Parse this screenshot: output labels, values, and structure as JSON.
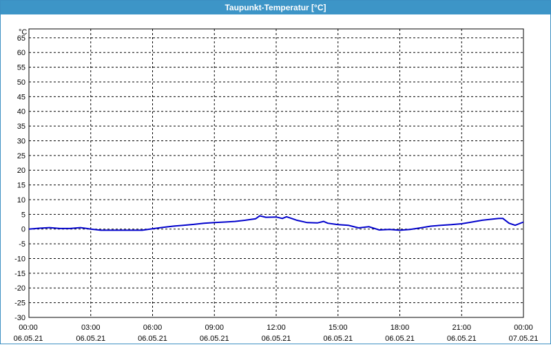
{
  "window": {
    "title": "Taupunkt-Temperatur [°C]"
  },
  "chart_data": {
    "type": "line",
    "title": "Taupunkt-Temperatur [°C]",
    "ylabel": "°C",
    "xlabel": "",
    "ylim": [
      -30,
      68
    ],
    "yticks": [
      65,
      60,
      55,
      50,
      45,
      40,
      35,
      30,
      25,
      20,
      15,
      10,
      5,
      0,
      -5,
      -10,
      -15,
      -20,
      -25,
      -30
    ],
    "xlim": [
      0,
      24
    ],
    "xticks": [
      {
        "hour": 0,
        "time": "00:00",
        "date": "06.05.21"
      },
      {
        "hour": 3,
        "time": "03:00",
        "date": "06.05.21"
      },
      {
        "hour": 6,
        "time": "06:00",
        "date": "06.05.21"
      },
      {
        "hour": 9,
        "time": "09:00",
        "date": "06.05.21"
      },
      {
        "hour": 12,
        "time": "12:00",
        "date": "06.05.21"
      },
      {
        "hour": 15,
        "time": "15:00",
        "date": "06.05.21"
      },
      {
        "hour": 18,
        "time": "18:00",
        "date": "06.05.21"
      },
      {
        "hour": 21,
        "time": "21:00",
        "date": "06.05.21"
      },
      {
        "hour": 24,
        "time": "00:00",
        "date": "07.05.21"
      }
    ],
    "grid": true,
    "line_color": "#0000cc",
    "series": [
      {
        "x": [
          0,
          0.5,
          1,
          1.5,
          2,
          2.5,
          3,
          3.5,
          4,
          4.5,
          5,
          5.5,
          6,
          6.5,
          7,
          7.5,
          8,
          8.5,
          9,
          9.5,
          10,
          10.5,
          11,
          11.2,
          11.5,
          12,
          12.3,
          12.5,
          12.8,
          13,
          13.5,
          14,
          14.3,
          14.5,
          15,
          15.5,
          16,
          16.5,
          17,
          17.5,
          18,
          18.5,
          19,
          19.5,
          20,
          20.5,
          21,
          21.5,
          22,
          22.5,
          22.8,
          23,
          23.3,
          23.6,
          24
        ],
        "y": [
          0,
          0.3,
          0.5,
          0.2,
          0.2,
          0.5,
          0,
          -0.4,
          -0.4,
          -0.4,
          -0.4,
          -0.4,
          0.1,
          0.6,
          1.0,
          1.3,
          1.6,
          2.0,
          2.2,
          2.4,
          2.6,
          3.0,
          3.5,
          4.5,
          4.0,
          4.1,
          3.6,
          4.2,
          3.5,
          3.0,
          2.2,
          2.1,
          2.6,
          2.0,
          1.5,
          1.3,
          0.4,
          0.8,
          -0.3,
          -0.1,
          -0.4,
          -0.1,
          0.4,
          1.0,
          1.3,
          1.5,
          1.8,
          2.4,
          3.0,
          3.4,
          3.6,
          3.6,
          2.0,
          1.3,
          2.4
        ]
      }
    ]
  }
}
